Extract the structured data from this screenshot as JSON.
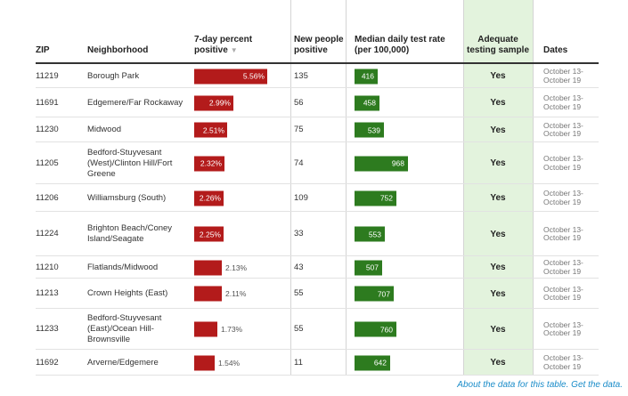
{
  "header": {
    "zip": "ZIP",
    "neighborhood": "Neighborhood",
    "pct": "7-day percent positive",
    "sort_icon": "▼",
    "new": "New people positive",
    "rate": "Median daily test rate (per 100,000)",
    "adequate": "Adequate testing sample",
    "dates": "Dates"
  },
  "colors": {
    "positive_bar": "#b31b1b",
    "rate_bar": "#2d7b1f",
    "adequate_bg": "#e3f3dd",
    "link": "#1a8cc9"
  },
  "rows": [
    {
      "zip": "11219",
      "neighborhood": "Borough Park",
      "pct_value": 5.56,
      "pct": "5.56%",
      "new": "135",
      "rate_value": 416,
      "rate": "416",
      "adequate": "Yes",
      "dates": "October 13-October 19"
    },
    {
      "zip": "11691",
      "neighborhood": "Edgemere/Far Rockaway",
      "pct_value": 2.99,
      "pct": "2.99%",
      "new": "56",
      "rate_value": 458,
      "rate": "458",
      "adequate": "Yes",
      "dates": "October 13-October 19"
    },
    {
      "zip": "11230",
      "neighborhood": "Midwood",
      "pct_value": 2.51,
      "pct": "2.51%",
      "new": "75",
      "rate_value": 539,
      "rate": "539",
      "adequate": "Yes",
      "dates": "October 13-October 19"
    },
    {
      "zip": "11205",
      "neighborhood": "Bedford-Stuyvesant (West)/Clinton Hill/Fort Greene",
      "pct_value": 2.32,
      "pct": "2.32%",
      "new": "74",
      "rate_value": 968,
      "rate": "968",
      "adequate": "Yes",
      "dates": "October 13-October 19"
    },
    {
      "zip": "11206",
      "neighborhood": "Williamsburg (South)",
      "pct_value": 2.26,
      "pct": "2.26%",
      "new": "109",
      "rate_value": 752,
      "rate": "752",
      "adequate": "Yes",
      "dates": "October 13-October 19"
    },
    {
      "zip": "11224",
      "neighborhood": "Brighton Beach/Coney Island/Seagate",
      "pct_value": 2.25,
      "pct": "2.25%",
      "new": "33",
      "rate_value": 553,
      "rate": "553",
      "adequate": "Yes",
      "dates": "October 13-October 19"
    },
    {
      "zip": "11210",
      "neighborhood": "Flatlands/Midwood",
      "pct_value": 2.13,
      "pct": "2.13%",
      "new": "43",
      "rate_value": 507,
      "rate": "507",
      "adequate": "Yes",
      "dates": "October 13-October 19"
    },
    {
      "zip": "11213",
      "neighborhood": "Crown Heights (East)",
      "pct_value": 2.11,
      "pct": "2.11%",
      "new": "55",
      "rate_value": 707,
      "rate": "707",
      "adequate": "Yes",
      "dates": "October 13-October 19"
    },
    {
      "zip": "11233",
      "neighborhood": "Bedford-Stuyvesant (East)/Ocean Hill-Brownsville",
      "pct_value": 1.73,
      "pct": "1.73%",
      "new": "55",
      "rate_value": 760,
      "rate": "760",
      "adequate": "Yes",
      "dates": "October 13-October 19"
    },
    {
      "zip": "11692",
      "neighborhood": "Arverne/Edgemere",
      "pct_value": 1.54,
      "pct": "1.54%",
      "new": "11",
      "rate_value": 642,
      "rate": "642",
      "adequate": "Yes",
      "dates": "October 13-October 19"
    }
  ],
  "footer": {
    "about_link": "About the data for this table.",
    "get_link": "Get the data."
  }
}
